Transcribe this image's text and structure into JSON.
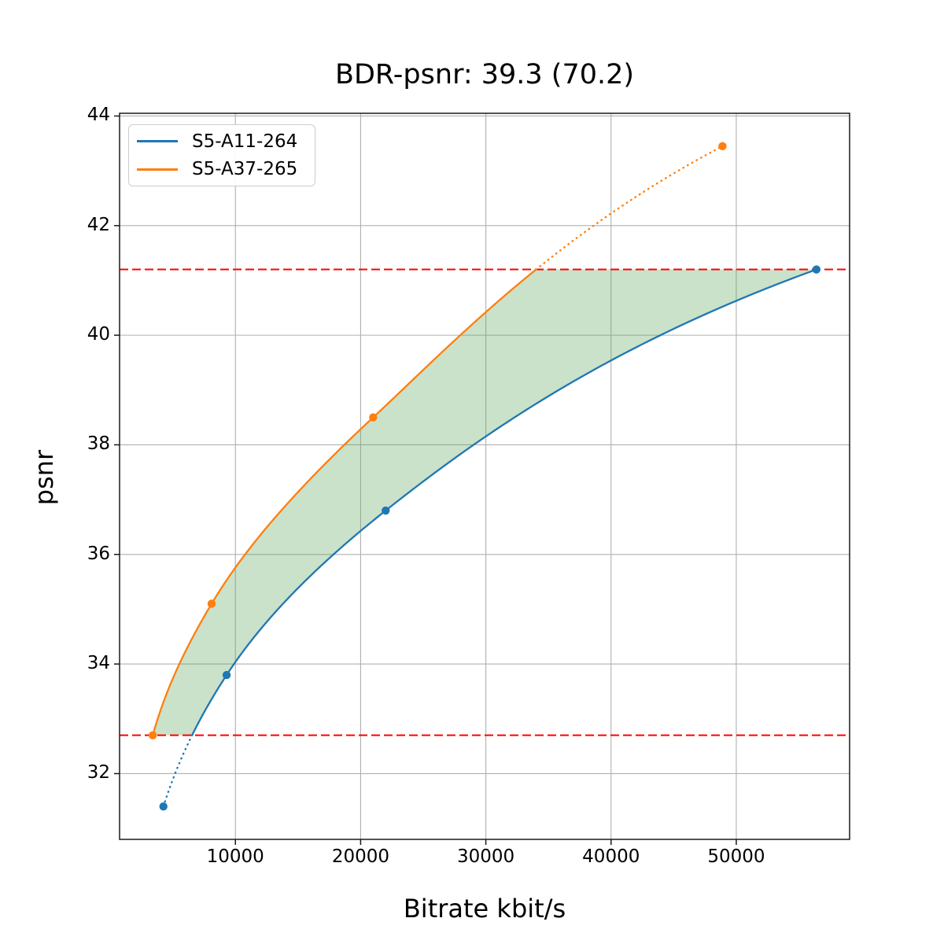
{
  "chart_data": {
    "type": "line",
    "title": "BDR-psnr: 39.3 (70.2)",
    "xlabel": "Bitrate kbit/s",
    "ylabel": "psnr",
    "xlim": [
      750,
      59050
    ],
    "ylim": [
      30.8,
      44.05
    ],
    "xticks": [
      10000,
      20000,
      30000,
      40000,
      50000
    ],
    "yticks": [
      32,
      34,
      36,
      38,
      40,
      42,
      44
    ],
    "grid": true,
    "grid_color": "#b0b0b0",
    "legend_position": "upper-left",
    "series": [
      {
        "name": "S5-A11-264",
        "color": "#1f77b4",
        "marker": "circle",
        "x": [
          4250,
          9300,
          22000,
          56400
        ],
        "y": [
          31.4,
          33.8,
          36.8,
          41.2
        ]
      },
      {
        "name": "S5-A37-265",
        "color": "#ff7f0e",
        "marker": "circle",
        "x": [
          3400,
          8100,
          21000,
          48900
        ],
        "y": [
          32.7,
          35.1,
          38.5,
          43.45
        ]
      }
    ],
    "overlap_band": {
      "y_low": 32.7,
      "y_high": 41.2,
      "line_color": "#ff0000",
      "line_style": "dashed",
      "fill_color": "#5ba35b",
      "fill_opacity": 0.32
    }
  }
}
